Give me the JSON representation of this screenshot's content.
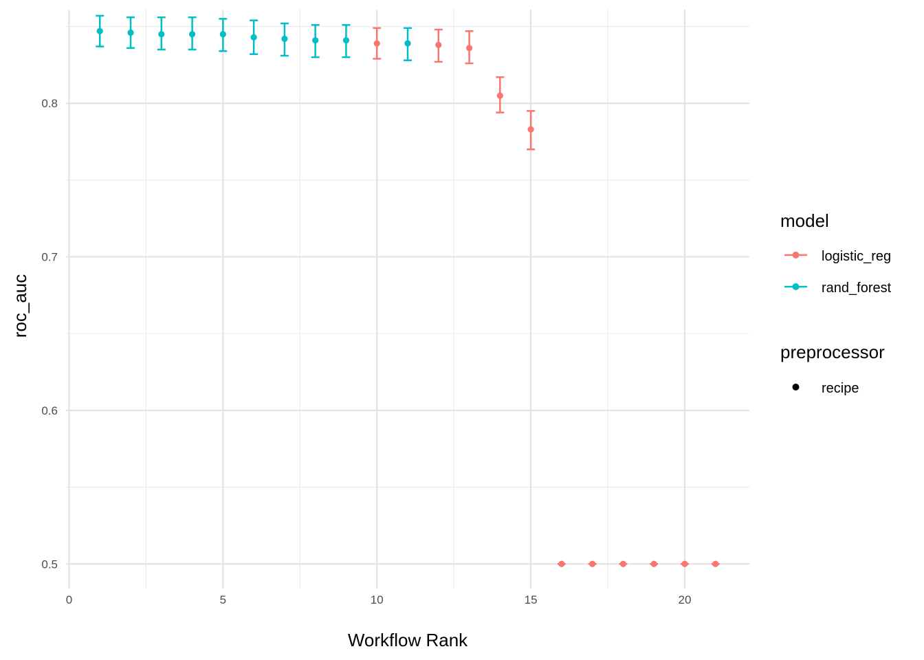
{
  "chart_data": {
    "type": "scatter",
    "title": "",
    "xlabel": "Workflow Rank",
    "ylabel": "roc_auc",
    "xlim": [
      -0.1,
      22.1
    ],
    "ylim": [
      0.484,
      0.861
    ],
    "x_ticks": [
      0,
      5,
      10,
      15,
      20
    ],
    "x_tick_labels": [
      "0",
      "5",
      "10",
      "15",
      "20"
    ],
    "y_ticks": [
      0.5,
      0.6,
      0.7,
      0.8
    ],
    "y_tick_labels": [
      "0.5",
      "0.6",
      "0.7",
      "0.8"
    ],
    "grid": true,
    "legend_position": "right",
    "colors": {
      "logistic_reg": "#F8766D",
      "rand_forest": "#00BFC4",
      "recipe": "#000000"
    },
    "legend": {
      "model_title": "model",
      "model_entries": [
        "logistic_reg",
        "rand_forest"
      ],
      "preprocessor_title": "preprocessor",
      "preprocessor_entries": [
        "recipe"
      ]
    },
    "points": [
      {
        "rank": 1,
        "model": "rand_forest",
        "mean": 0.847,
        "lower": 0.837,
        "upper": 0.857
      },
      {
        "rank": 2,
        "model": "rand_forest",
        "mean": 0.846,
        "lower": 0.836,
        "upper": 0.856
      },
      {
        "rank": 3,
        "model": "rand_forest",
        "mean": 0.845,
        "lower": 0.835,
        "upper": 0.856
      },
      {
        "rank": 4,
        "model": "rand_forest",
        "mean": 0.845,
        "lower": 0.835,
        "upper": 0.856
      },
      {
        "rank": 5,
        "model": "rand_forest",
        "mean": 0.845,
        "lower": 0.834,
        "upper": 0.855
      },
      {
        "rank": 6,
        "model": "rand_forest",
        "mean": 0.843,
        "lower": 0.832,
        "upper": 0.854
      },
      {
        "rank": 7,
        "model": "rand_forest",
        "mean": 0.842,
        "lower": 0.831,
        "upper": 0.852
      },
      {
        "rank": 8,
        "model": "rand_forest",
        "mean": 0.841,
        "lower": 0.83,
        "upper": 0.851
      },
      {
        "rank": 9,
        "model": "rand_forest",
        "mean": 0.841,
        "lower": 0.83,
        "upper": 0.851
      },
      {
        "rank": 10,
        "model": "logistic_reg",
        "mean": 0.839,
        "lower": 0.829,
        "upper": 0.849
      },
      {
        "rank": 11,
        "model": "rand_forest",
        "mean": 0.839,
        "lower": 0.828,
        "upper": 0.849
      },
      {
        "rank": 12,
        "model": "logistic_reg",
        "mean": 0.838,
        "lower": 0.827,
        "upper": 0.848
      },
      {
        "rank": 13,
        "model": "logistic_reg",
        "mean": 0.836,
        "lower": 0.826,
        "upper": 0.847
      },
      {
        "rank": 14,
        "model": "logistic_reg",
        "mean": 0.805,
        "lower": 0.794,
        "upper": 0.817
      },
      {
        "rank": 15,
        "model": "logistic_reg",
        "mean": 0.783,
        "lower": 0.77,
        "upper": 0.795
      },
      {
        "rank": 16,
        "model": "logistic_reg",
        "mean": 0.5,
        "lower": 0.5,
        "upper": 0.5
      },
      {
        "rank": 17,
        "model": "logistic_reg",
        "mean": 0.5,
        "lower": 0.5,
        "upper": 0.5
      },
      {
        "rank": 18,
        "model": "logistic_reg",
        "mean": 0.5,
        "lower": 0.5,
        "upper": 0.5
      },
      {
        "rank": 19,
        "model": "logistic_reg",
        "mean": 0.5,
        "lower": 0.5,
        "upper": 0.5
      },
      {
        "rank": 20,
        "model": "logistic_reg",
        "mean": 0.5,
        "lower": 0.5,
        "upper": 0.5
      },
      {
        "rank": 21,
        "model": "logistic_reg",
        "mean": 0.5,
        "lower": 0.5,
        "upper": 0.5
      }
    ]
  }
}
